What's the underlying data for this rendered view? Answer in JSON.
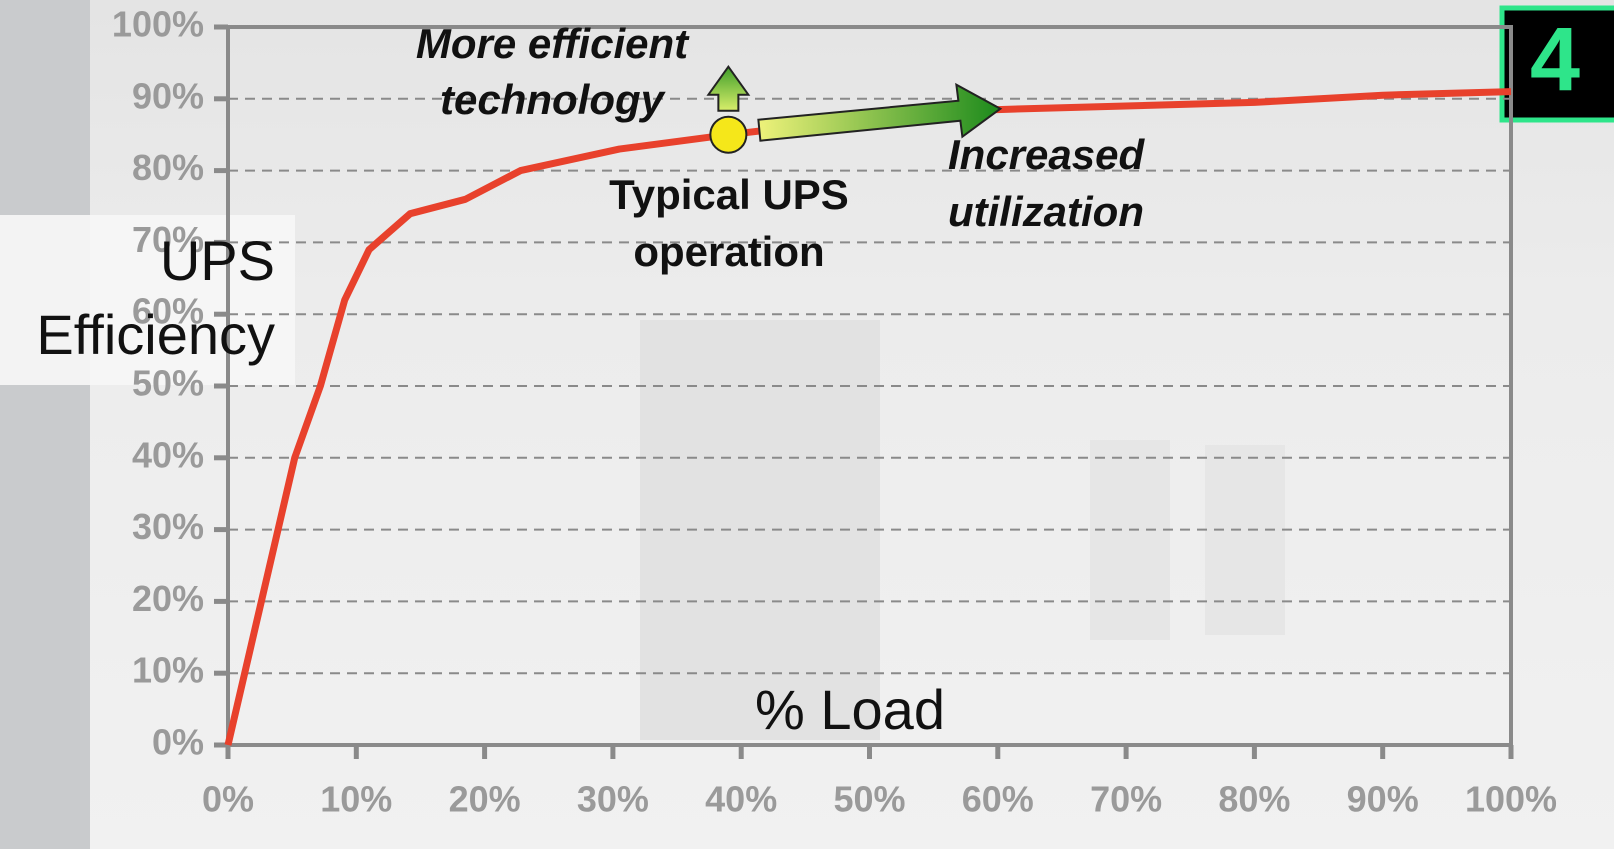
{
  "chart_data": {
    "type": "line",
    "ylabel_lines": [
      "UPS",
      "Efficiency"
    ],
    "xlabel": "% Load",
    "annotations": {
      "more_efficient": [
        "More efficient",
        "technology"
      ],
      "typical": [
        "Typical UPS",
        "operation"
      ],
      "increased": [
        "Increased",
        "utilization"
      ]
    },
    "badge": "4",
    "color": "#e8412c",
    "x": [
      0,
      2.6,
      5.2,
      7.2,
      9.1,
      11,
      14.2,
      18.5,
      22.8,
      30.5,
      39,
      48.5,
      60,
      80,
      90,
      100
    ],
    "values": [
      0,
      20,
      40,
      50,
      62,
      69,
      74,
      76,
      80,
      83,
      85,
      87,
      88.5,
      89.5,
      90.5,
      91
    ],
    "marker": {
      "x": 39,
      "y": 85,
      "color": "#f5e71a"
    },
    "xlim": [
      0,
      100
    ],
    "ylim": [
      0,
      100
    ],
    "xticks": [
      {
        "value": 0,
        "label": "0%"
      },
      {
        "value": 10,
        "label": "10%"
      },
      {
        "value": 20,
        "label": "20%"
      },
      {
        "value": 30,
        "label": "30%"
      },
      {
        "value": 40,
        "label": "40%"
      },
      {
        "value": 50,
        "label": "50%"
      },
      {
        "value": 60,
        "label": "60%"
      },
      {
        "value": 70,
        "label": "70%"
      },
      {
        "value": 80,
        "label": "80%"
      },
      {
        "value": 90,
        "label": "90%"
      },
      {
        "value": 100,
        "label": "100%"
      }
    ],
    "yticks": [
      {
        "value": 0,
        "label": "0%"
      },
      {
        "value": 10,
        "label": "10%"
      },
      {
        "value": 20,
        "label": "20%"
      },
      {
        "value": 30,
        "label": "30%"
      },
      {
        "value": 40,
        "label": "40%"
      },
      {
        "value": 50,
        "label": "50%"
      },
      {
        "value": 60,
        "label": "60%"
      },
      {
        "value": 70,
        "label": "70%"
      },
      {
        "value": 80,
        "label": "80%"
      },
      {
        "value": 90,
        "label": "90%"
      },
      {
        "value": 100,
        "label": "100%"
      }
    ],
    "grid": true
  }
}
